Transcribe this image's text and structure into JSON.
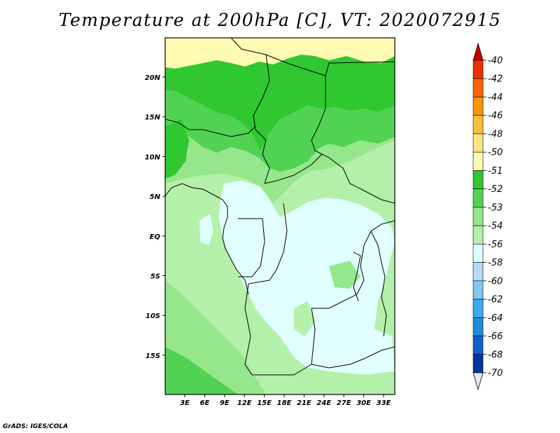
{
  "title": "Temperature at 200hPa [C], VT: 2020072915",
  "credit": "GrADS: IGES/COLA",
  "map": {
    "lat_ticks": [
      "20N",
      "15N",
      "10N",
      "5N",
      "EQ",
      "5S",
      "10S",
      "15S"
    ],
    "lon_ticks": [
      "3E",
      "6E",
      "9E",
      "12E",
      "15E",
      "18E",
      "21E",
      "24E",
      "27E",
      "30E",
      "33E"
    ]
  },
  "colorbar": {
    "levels": [
      "-40",
      "-42",
      "-44",
      "-46",
      "-48",
      "-50",
      "-51",
      "-52",
      "-53",
      "-54",
      "-56",
      "-58",
      "-60",
      "-62",
      "-64",
      "-66",
      "-68",
      "-70"
    ],
    "colors": [
      "#c80000",
      "#ee3000",
      "#fa6400",
      "#fa9600",
      "#fabe3c",
      "#fae682",
      "#fffab4",
      "#30c830",
      "#52d252",
      "#96e68c",
      "#b4f0aa",
      "#e1ffff",
      "#b4dcfa",
      "#82c8f0",
      "#3caaf0",
      "#1e8cdc",
      "#0a64c8",
      "#0032a0",
      "#00005a"
    ]
  }
}
